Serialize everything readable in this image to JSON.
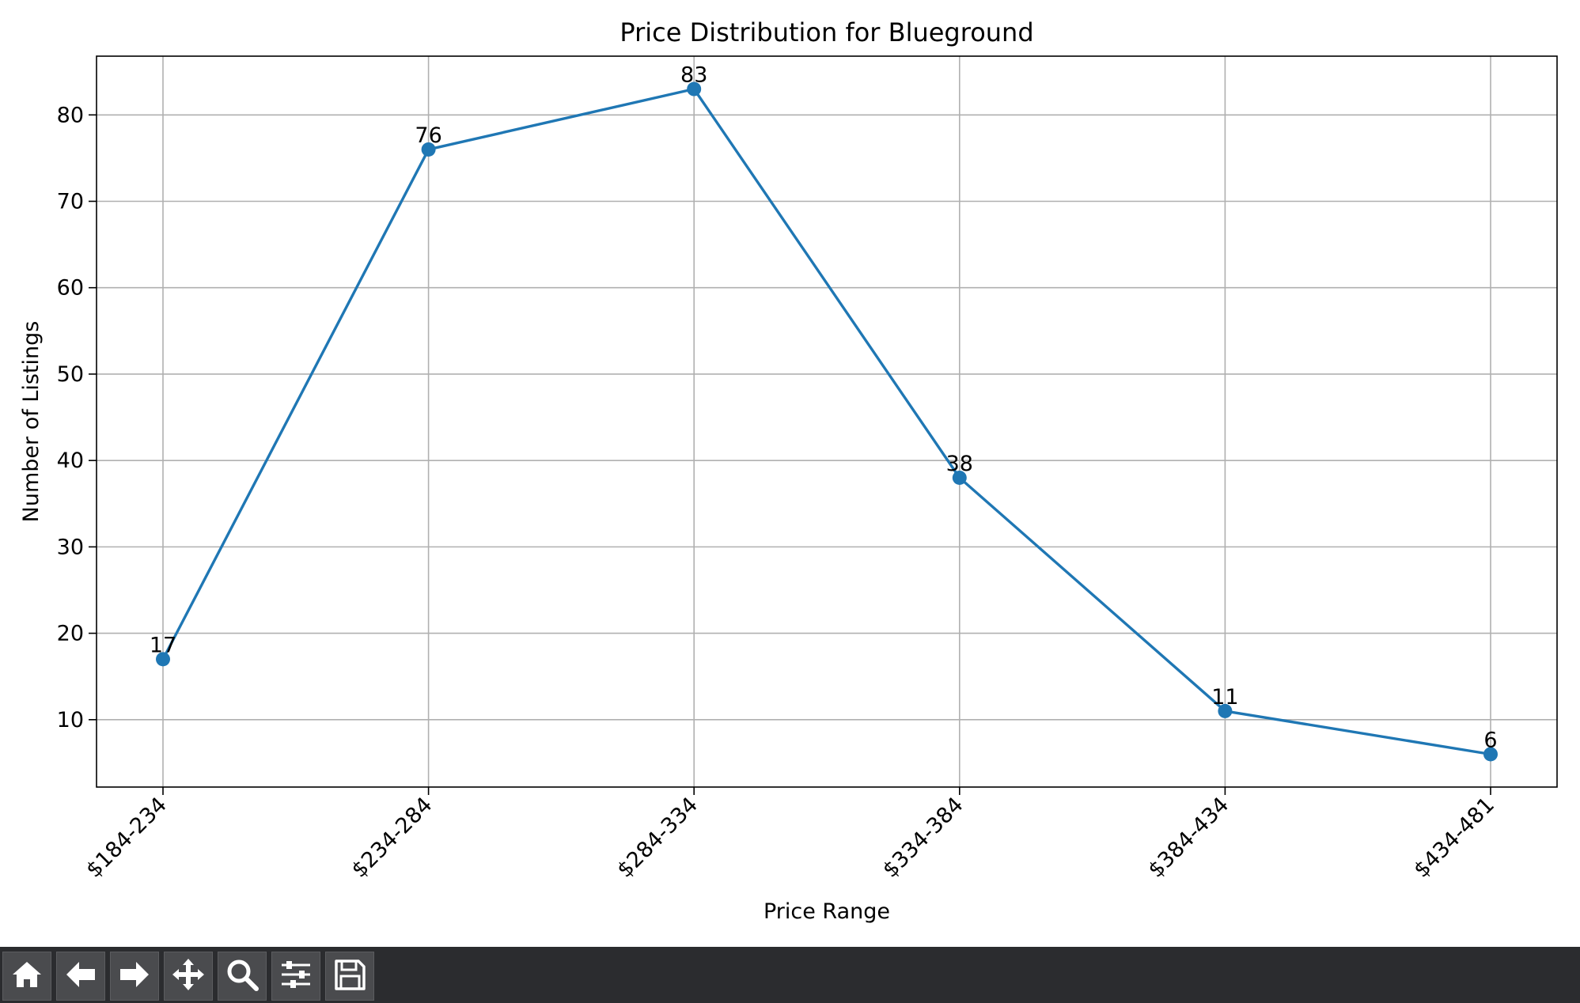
{
  "chart_data": {
    "type": "line",
    "title": "Price Distribution for Blueground",
    "xlabel": "Price Range",
    "ylabel": "Number of Listings",
    "categories": [
      "$184-234",
      "$234-284",
      "$284-334",
      "$334-384",
      "$384-434",
      "$434-481"
    ],
    "values": [
      17,
      76,
      83,
      38,
      11,
      6
    ],
    "data_labels": [
      "17",
      "76",
      "83",
      "38",
      "11",
      "6"
    ],
    "yticks": [
      10,
      20,
      30,
      40,
      50,
      60,
      70,
      80
    ],
    "ylim": [
      2.2,
      86.8
    ],
    "grid": true,
    "marker": "circle",
    "color": "#1f77b4"
  },
  "toolbar": {
    "buttons": [
      {
        "name": "home-button",
        "icon": "home-icon"
      },
      {
        "name": "back-button",
        "icon": "arrow-left-icon"
      },
      {
        "name": "forward-button",
        "icon": "arrow-right-icon"
      },
      {
        "name": "pan-button",
        "icon": "move-icon"
      },
      {
        "name": "zoom-button",
        "icon": "magnifier-icon"
      },
      {
        "name": "configure-subplots-button",
        "icon": "sliders-icon"
      },
      {
        "name": "save-button",
        "icon": "floppy-disk-icon"
      }
    ],
    "background": "#2b2c2f",
    "button_color": "#4a4b4e",
    "icon_color": "#ffffff"
  }
}
